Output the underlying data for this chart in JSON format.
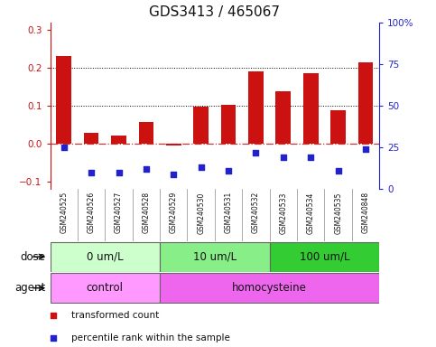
{
  "title": "GDS3413 / 465067",
  "samples": [
    "GSM240525",
    "GSM240526",
    "GSM240527",
    "GSM240528",
    "GSM240529",
    "GSM240530",
    "GSM240531",
    "GSM240532",
    "GSM240533",
    "GSM240534",
    "GSM240535",
    "GSM240848"
  ],
  "transformed_count": [
    0.232,
    0.028,
    0.022,
    0.057,
    -0.005,
    0.097,
    0.102,
    0.19,
    0.138,
    0.187,
    0.088,
    0.215
  ],
  "percentile_rank": [
    25,
    10,
    10,
    12,
    9,
    13,
    11,
    22,
    19,
    19,
    11,
    24
  ],
  "bar_color": "#cc1111",
  "dot_color": "#2222cc",
  "ylim_left": [
    -0.12,
    0.32
  ],
  "ylim_right": [
    0,
    100
  ],
  "yticks_left": [
    -0.1,
    0.0,
    0.1,
    0.2,
    0.3
  ],
  "yticks_right": [
    0,
    25,
    50,
    75,
    100
  ],
  "ytick_right_labels": [
    "0",
    "25",
    "50",
    "75",
    "100%"
  ],
  "hlines": [
    0.1,
    0.2
  ],
  "dose_groups": [
    {
      "label": "0 um/L",
      "start": 0,
      "end": 4,
      "color": "#ccffcc"
    },
    {
      "label": "10 um/L",
      "start": 4,
      "end": 8,
      "color": "#88ee88"
    },
    {
      "label": "100 um/L",
      "start": 8,
      "end": 12,
      "color": "#33cc33"
    }
  ],
  "agent_groups": [
    {
      "label": "control",
      "start": 0,
      "end": 4,
      "color": "#ff99ff"
    },
    {
      "label": "homocysteine",
      "start": 4,
      "end": 12,
      "color": "#ee66ee"
    }
  ],
  "legend_items": [
    {
      "label": "transformed count",
      "color": "#cc1111",
      "marker": "s"
    },
    {
      "label": "percentile rank within the sample",
      "color": "#2222cc",
      "marker": "s"
    }
  ],
  "dose_label": "dose",
  "agent_label": "agent",
  "zero_line_color": "#cc3333",
  "hline_color": "#000000",
  "sample_box_color": "#bbbbbb",
  "background_color": "#ffffff",
  "title_fontsize": 11,
  "tick_fontsize": 7.5,
  "label_fontsize": 8.5,
  "sample_fontsize": 5.5,
  "legend_fontsize": 7.5
}
